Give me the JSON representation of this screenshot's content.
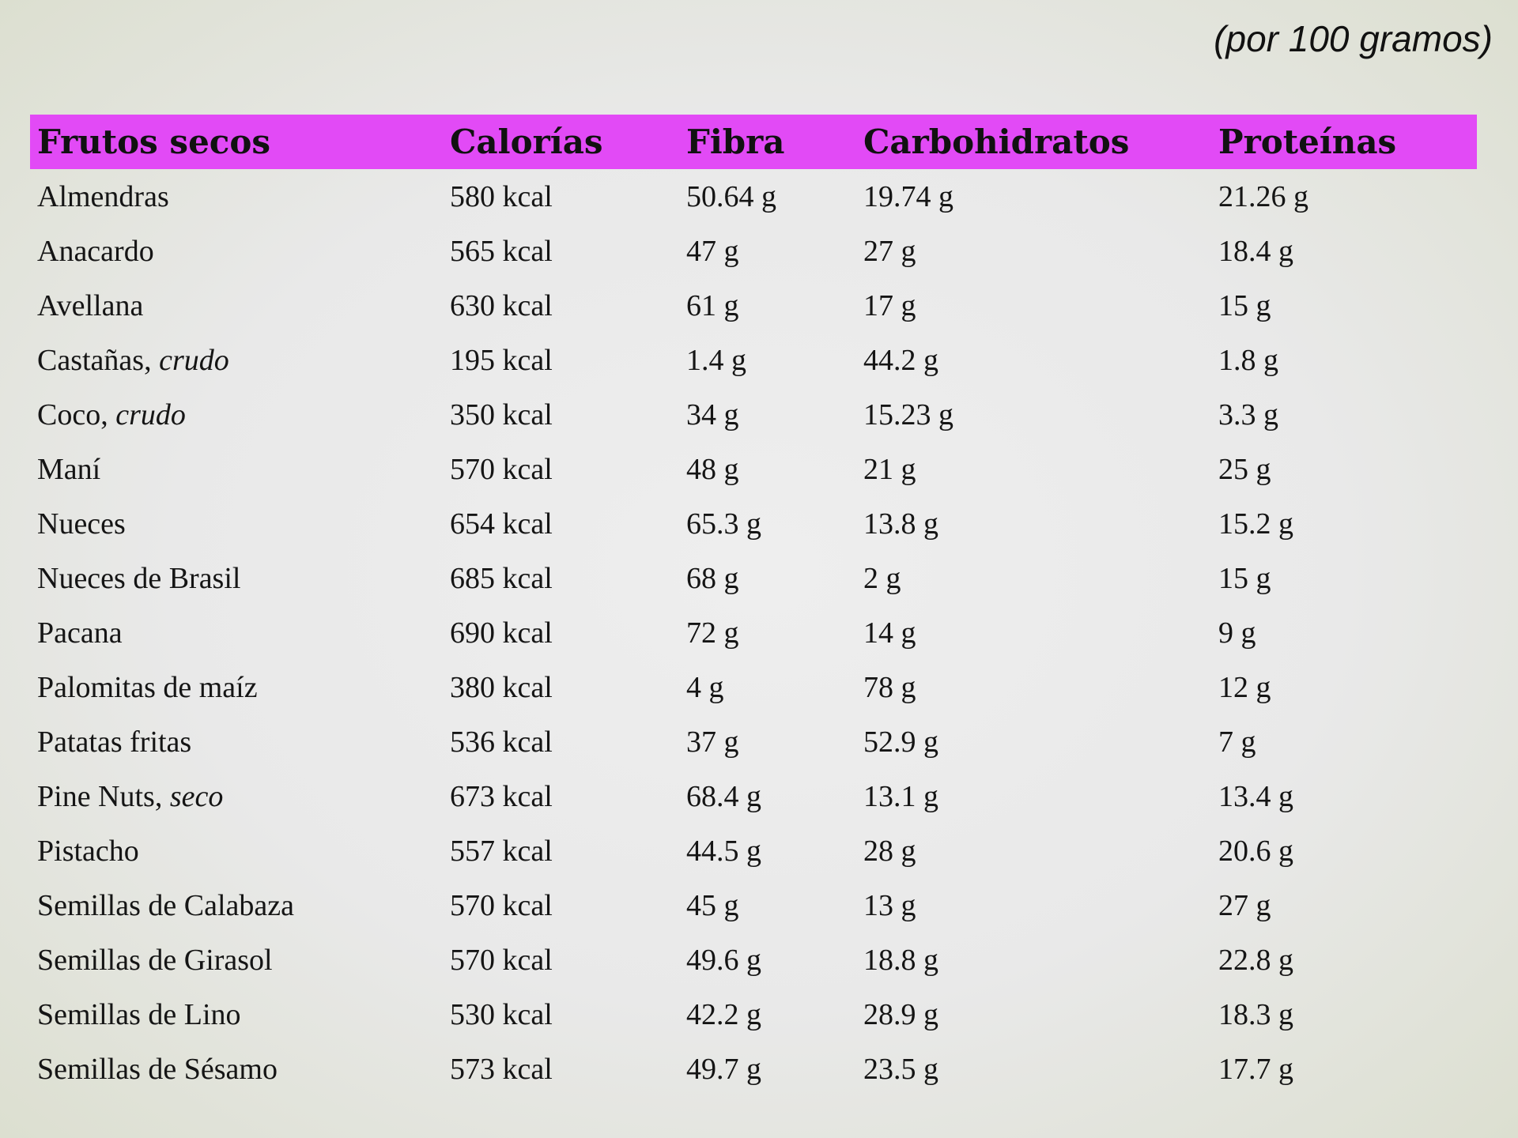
{
  "units_note": "(por 100 gramos)",
  "table": {
    "headers": [
      "Frutos secos",
      "Calorías",
      "Fibra",
      "Carbohidratos",
      "Proteínas"
    ],
    "rows": [
      {
        "name": "Almendras",
        "note": "",
        "calorias": "580 kcal",
        "fibra": "50.64 g",
        "carbohidratos": "19.74 g",
        "proteinas": "21.26 g"
      },
      {
        "name": "Anacardo",
        "note": "",
        "calorias": "565 kcal",
        "fibra": "47 g",
        "carbohidratos": "27 g",
        "proteinas": "18.4 g"
      },
      {
        "name": "Avellana",
        "note": "",
        "calorias": "630 kcal",
        "fibra": "61 g",
        "carbohidratos": "17 g",
        "proteinas": "15 g"
      },
      {
        "name": "Castañas, ",
        "note": "crudo",
        "calorias": "195 kcal",
        "fibra": "1.4 g",
        "carbohidratos": "44.2 g",
        "proteinas": "1.8 g"
      },
      {
        "name": "Coco, ",
        "note": "crudo",
        "calorias": "350 kcal",
        "fibra": "34 g",
        "carbohidratos": "15.23 g",
        "proteinas": "3.3 g"
      },
      {
        "name": "Maní",
        "note": "",
        "calorias": "570 kcal",
        "fibra": "48 g",
        "carbohidratos": "21 g",
        "proteinas": "25 g"
      },
      {
        "name": "Nueces",
        "note": "",
        "calorias": "654 kcal",
        "fibra": "65.3 g",
        "carbohidratos": "13.8 g",
        "proteinas": "15.2 g"
      },
      {
        "name": "Nueces de Brasil",
        "note": "",
        "calorias": "685 kcal",
        "fibra": "68 g",
        "carbohidratos": "2 g",
        "proteinas": "15 g"
      },
      {
        "name": "Pacana",
        "note": "",
        "calorias": "690 kcal",
        "fibra": "72 g",
        "carbohidratos": "14 g",
        "proteinas": "9 g"
      },
      {
        "name": "Palomitas de maíz",
        "note": "",
        "calorias": "380 kcal",
        "fibra": "4 g",
        "carbohidratos": "78 g",
        "proteinas": "12 g"
      },
      {
        "name": "Patatas fritas",
        "note": "",
        "calorias": "536 kcal",
        "fibra": "37 g",
        "carbohidratos": "52.9 g",
        "proteinas": "7 g"
      },
      {
        "name": "Pine Nuts, ",
        "note": "seco",
        "calorias": "673 kcal",
        "fibra": "68.4 g",
        "carbohidratos": "13.1 g",
        "proteinas": "13.4 g"
      },
      {
        "name": "Pistacho",
        "note": "",
        "calorias": "557 kcal",
        "fibra": "44.5 g",
        "carbohidratos": "28 g",
        "proteinas": "20.6 g"
      },
      {
        "name": "Semillas de Calabaza",
        "note": "",
        "calorias": "570 kcal",
        "fibra": "45 g",
        "carbohidratos": "13 g",
        "proteinas": "27 g"
      },
      {
        "name": "Semillas de Girasol",
        "note": "",
        "calorias": "570 kcal",
        "fibra": "49.6 g",
        "carbohidratos": "18.8 g",
        "proteinas": "22.8 g"
      },
      {
        "name": "Semillas de Lino",
        "note": "",
        "calorias": "530 kcal",
        "fibra": "42.2 g",
        "carbohidratos": "28.9 g",
        "proteinas": "18.3 g"
      },
      {
        "name": "Semillas de Sésamo",
        "note": "",
        "calorias": "573 kcal",
        "fibra": "49.7 g",
        "carbohidratos": "23.5 g",
        "proteinas": "17.7 g"
      }
    ]
  },
  "colors": {
    "header_band": "#e24af6",
    "text": "#111111",
    "background": "#e9e9e9"
  }
}
